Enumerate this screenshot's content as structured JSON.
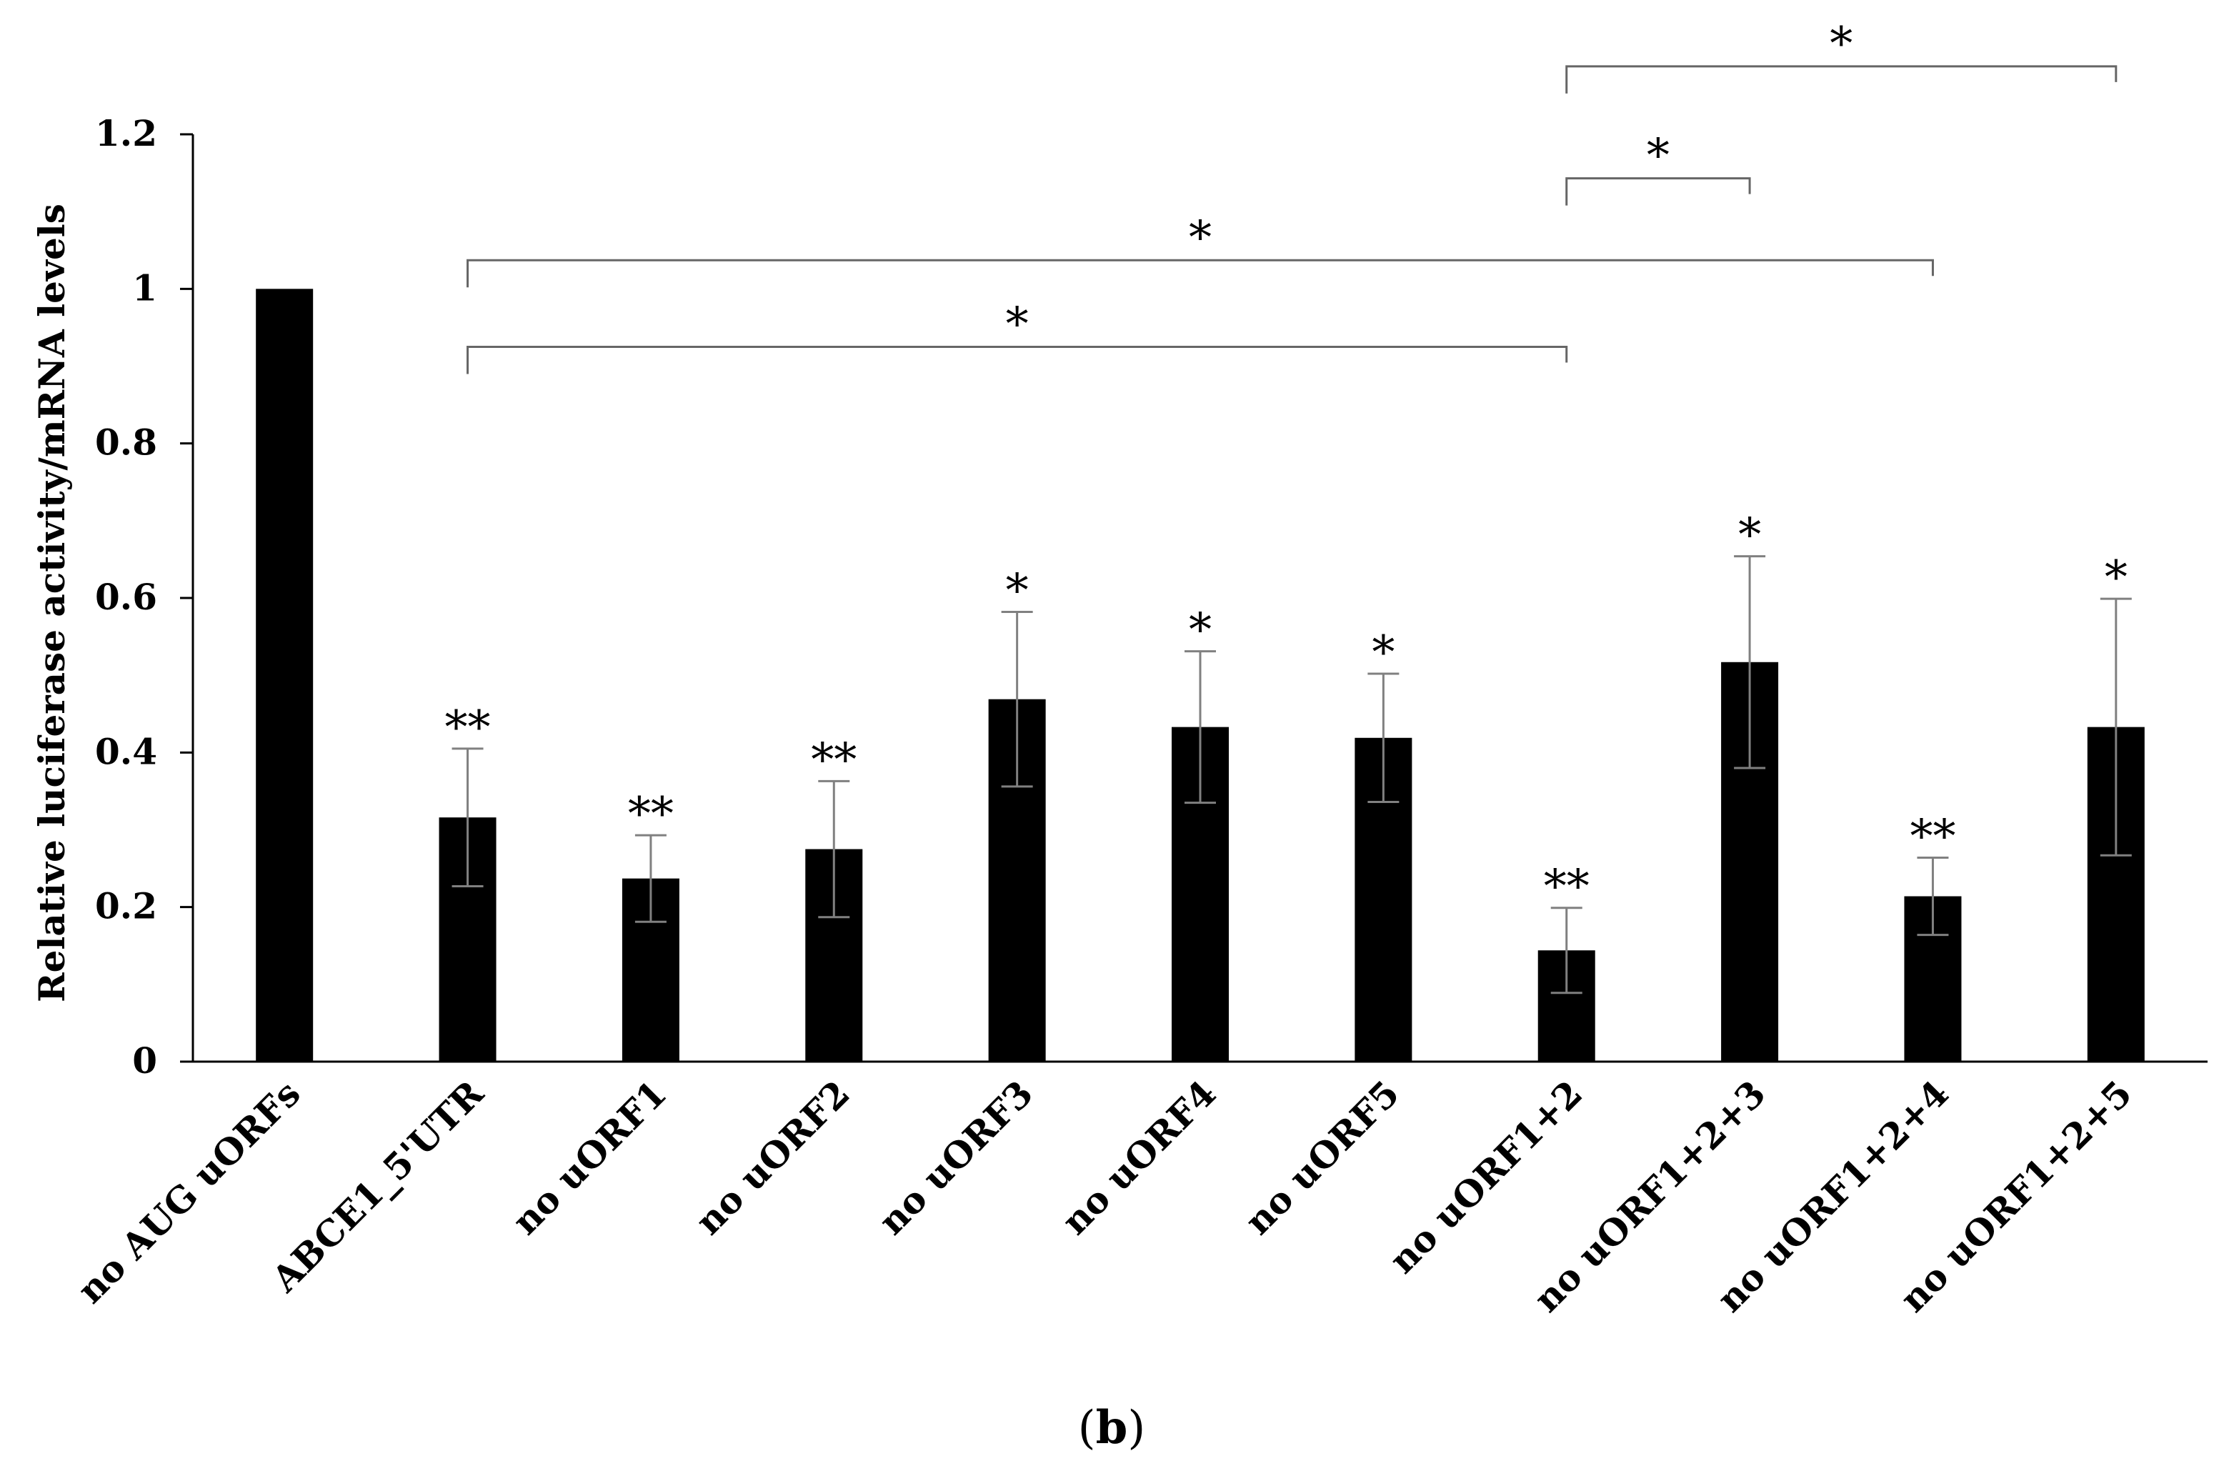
{
  "chart_data": {
    "type": "bar",
    "title": "",
    "xlabel": "",
    "ylabel": "Relative luciferase activity/mRNA levels",
    "ylim": [
      0,
      1.2
    ],
    "yticks": [
      0,
      0.2,
      0.4,
      0.6,
      0.8,
      1,
      1.2
    ],
    "ytick_labels": [
      "0",
      "0.2",
      "0.4",
      "0.6",
      "0.8",
      "1",
      "1.2"
    ],
    "grid": false,
    "bar_color": "#000000",
    "error_color": "#808080",
    "categories": [
      "no AUG uORFs",
      "ABCE1_5'UTR",
      "no uORF1",
      "no uORF2",
      "no uORF3",
      "no uORF4",
      "no uORF5",
      "no uORF1+2",
      "no uORF1+2+3",
      "no uORF1+2+4",
      "no uORF1+2+5"
    ],
    "values": [
      1.0,
      0.316,
      0.237,
      0.275,
      0.469,
      0.433,
      0.419,
      0.144,
      0.517,
      0.214,
      0.433
    ],
    "errors": [
      0,
      0.089,
      0.056,
      0.088,
      0.113,
      0.098,
      0.083,
      0.055,
      0.137,
      0.05,
      0.166
    ],
    "significance": [
      "",
      "**",
      "**",
      "**",
      "*",
      "*",
      "*",
      "**",
      "*",
      "**",
      "*"
    ],
    "comparisons": [
      {
        "from": "ABCE1_5'UTR",
        "to": "no uORF1+2",
        "label": "*",
        "y": 0.925
      },
      {
        "from": "ABCE1_5'UTR",
        "to": "no uORF1+2+4",
        "label": "*",
        "y": 1.037
      },
      {
        "from": "no uORF1+2",
        "to": "no uORF1+2+3",
        "label": "*",
        "y": 1.143
      },
      {
        "from": "no uORF1+2",
        "to": "no uORF1+2+5",
        "label": "*",
        "y": 1.288
      }
    ],
    "panel_label": {
      "open": "(",
      "letter": "b",
      "close": ")"
    }
  }
}
